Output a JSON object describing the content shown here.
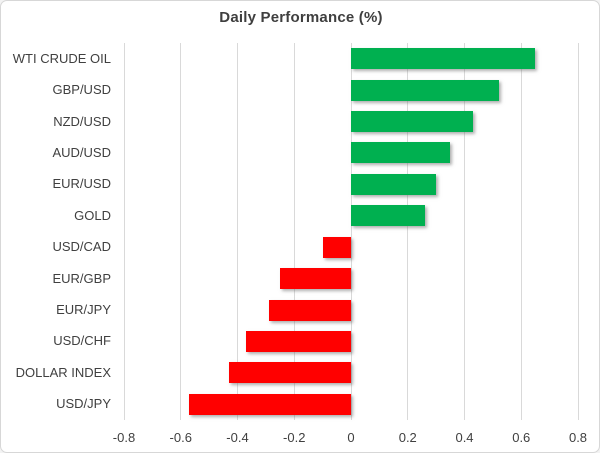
{
  "window": {
    "background": "#ffffff",
    "border_color": "#d7d7d7"
  },
  "chart_data": {
    "type": "bar",
    "orientation": "horizontal",
    "title": "Daily Performance (%)",
    "categories": [
      "WTI CRUDE OIL",
      "GBP/USD",
      "NZD/USD",
      "AUD/USD",
      "EUR/USD",
      "GOLD",
      "USD/CAD",
      "EUR/GBP",
      "EUR/JPY",
      "USD/CHF",
      "DOLLAR INDEX",
      "USD/JPY"
    ],
    "values": [
      0.65,
      0.52,
      0.43,
      0.35,
      0.3,
      0.26,
      -0.1,
      -0.25,
      -0.29,
      -0.37,
      -0.43,
      -0.57
    ],
    "xlabel": "",
    "ylabel": "",
    "xlim": [
      -0.8,
      0.8
    ],
    "xtick_values": [
      -0.8,
      -0.6,
      -0.4,
      -0.2,
      0,
      0.2,
      0.4,
      0.6,
      0.8
    ],
    "xtick_labels": [
      "-0.8",
      "-0.6",
      "-0.4",
      "-0.2",
      "0",
      "0.2",
      "0.4",
      "0.6",
      "0.8"
    ],
    "grid": true,
    "legend": "none",
    "colors": {
      "positive": "#00B050",
      "negative": "#FF0000",
      "gridline": "#D9D9D9",
      "text": "#404040",
      "title": "#3F3F3F"
    }
  }
}
